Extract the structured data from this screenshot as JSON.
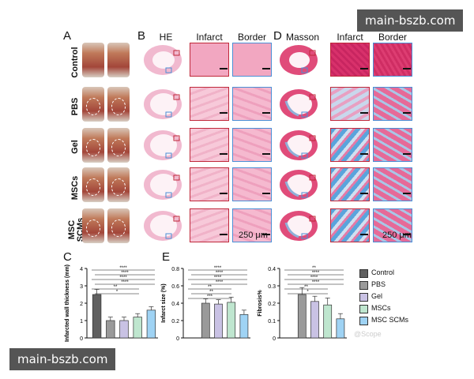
{
  "watermark_top": "main-bszb.com",
  "watermark_bottom": "main-bszb.com",
  "panels": {
    "A": "A",
    "B": "B",
    "C": "C",
    "D": "D",
    "E": "E"
  },
  "column_heads": {
    "he": "HE",
    "infarct": "Infarct",
    "border": "Border",
    "masson": "Masson",
    "infarct2": "Infarct",
    "border2": "Border"
  },
  "row_labels": [
    "Control",
    "PBS",
    "Gel",
    "MSCs",
    "MSC SCMs"
  ],
  "scale_bar_text": "250 μm",
  "legend": [
    "Control",
    "PBS",
    "Gel",
    "MSCs",
    "MSC SCMs"
  ],
  "colors": {
    "Control": "#606060",
    "PBS": "#9a9a9a",
    "Gel": "#c9c2e4",
    "MSCs": "#bfe6cf",
    "MSC SCMs": "#9fd3f4"
  },
  "significance": "****",
  "chart_data": [
    {
      "type": "bar",
      "ylabel": "Infarcted wall thickness (mm)",
      "yticks": [
        0,
        1,
        2,
        3,
        4
      ],
      "ylim": [
        0,
        4
      ],
      "categories": [
        "Control",
        "PBS",
        "Gel",
        "MSCs",
        "MSC SCMs"
      ],
      "values": [
        2.5,
        1.0,
        1.0,
        1.2,
        1.6
      ],
      "errors": [
        0.3,
        0.2,
        0.2,
        0.2,
        0.2
      ],
      "sig_labels": [
        "****",
        "****",
        "****",
        "****",
        "**",
        "*"
      ]
    },
    {
      "type": "bar",
      "ylabel": "Infarct size (%)",
      "yticks": [
        0.0,
        0.2,
        0.4,
        0.6,
        0.8
      ],
      "ylim": [
        0,
        0.8
      ],
      "categories": [
        "Control",
        "PBS",
        "Gel",
        "MSCs",
        "MSC SCMs"
      ],
      "values": [
        0.0,
        0.4,
        0.39,
        0.41,
        0.27
      ],
      "errors": [
        0,
        0.05,
        0.05,
        0.06,
        0.05
      ],
      "sig_labels": [
        "****",
        "****",
        "****",
        "****",
        "**",
        "**",
        "***"
      ]
    },
    {
      "type": "bar",
      "ylabel": "Fibrosis%",
      "yticks": [
        0.0,
        0.1,
        0.2,
        0.3,
        0.4
      ],
      "ylim": [
        0,
        0.4
      ],
      "categories": [
        "Control",
        "PBS",
        "Gel",
        "MSCs",
        "MSC SCMs"
      ],
      "values": [
        0.0,
        0.25,
        0.21,
        0.19,
        0.11
      ],
      "errors": [
        0,
        0.04,
        0.03,
        0.04,
        0.03
      ],
      "sig_labels": [
        "**",
        "****",
        "****",
        "****",
        "**",
        "*"
      ]
    }
  ]
}
